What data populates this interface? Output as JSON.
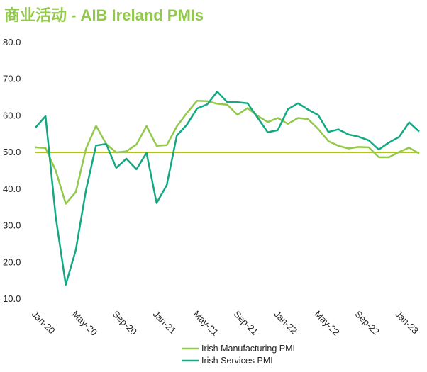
{
  "title": "商业活动 - AIB Ireland PMIs",
  "colors": {
    "title": "#92C94B",
    "manufacturing": "#92C94B",
    "services": "#12A882",
    "reference_line": "#B5C900"
  },
  "chart_data": {
    "type": "line",
    "title": "商业活动 - AIB Ireland PMIs",
    "xlabel": "",
    "ylabel": "",
    "ylim": [
      10,
      80
    ],
    "yticks": [
      10,
      20,
      30,
      40,
      50,
      60,
      70,
      80
    ],
    "ytick_labels": [
      "10.0",
      "20.0",
      "30.0",
      "40.0",
      "50.0",
      "60.0",
      "70.0",
      "80.0"
    ],
    "grid": false,
    "legend_position": "bottom",
    "x": [
      "Jan-20",
      "Feb-20",
      "Mar-20",
      "Apr-20",
      "May-20",
      "Jun-20",
      "Jul-20",
      "Aug-20",
      "Sep-20",
      "Oct-20",
      "Nov-20",
      "Dec-20",
      "Jan-21",
      "Feb-21",
      "Mar-21",
      "Apr-21",
      "May-21",
      "Jun-21",
      "Jul-21",
      "Aug-21",
      "Sep-21",
      "Oct-21",
      "Nov-21",
      "Dec-21",
      "Jan-22",
      "Feb-22",
      "Mar-22",
      "Apr-22",
      "May-22",
      "Jun-22",
      "Jul-22",
      "Aug-22",
      "Sep-22",
      "Oct-22",
      "Nov-22",
      "Dec-22",
      "Jan-23",
      "Feb-23",
      "Mar-23"
    ],
    "xtick_labels": [
      "Jan-20",
      "May-20",
      "Sep-20",
      "Jan-21",
      "May-21",
      "Sep-21",
      "Jan-22",
      "May-22",
      "Sep-22",
      "Jan-23"
    ],
    "reference_line": 50,
    "series": [
      {
        "name": "Irish Manufacturing PMI",
        "values": [
          51.4,
          51.2,
          45.1,
          36.0,
          39.2,
          51.0,
          57.3,
          52.3,
          50.0,
          50.3,
          52.2,
          57.2,
          51.8,
          52.0,
          57.1,
          60.8,
          64.1,
          64.0,
          63.3,
          63.0,
          60.3,
          62.1,
          60.0,
          58.3,
          59.4,
          57.8,
          59.4,
          59.1,
          56.4,
          53.1,
          51.8,
          51.1,
          51.5,
          51.4,
          48.7,
          48.7,
          50.1,
          51.3,
          49.7
        ]
      },
      {
        "name": "Irish Services PMI",
        "values": [
          56.8,
          59.9,
          32.5,
          13.9,
          23.4,
          39.7,
          51.9,
          52.3,
          45.8,
          48.3,
          45.4,
          49.9,
          36.2,
          41.1,
          54.6,
          57.6,
          62.0,
          63.1,
          66.6,
          63.7,
          63.7,
          63.4,
          59.5,
          55.5,
          56.1,
          61.8,
          63.4,
          61.7,
          60.2,
          55.6,
          56.3,
          54.9,
          54.3,
          53.3,
          50.8,
          52.7,
          54.2,
          58.2,
          55.7
        ]
      }
    ]
  }
}
